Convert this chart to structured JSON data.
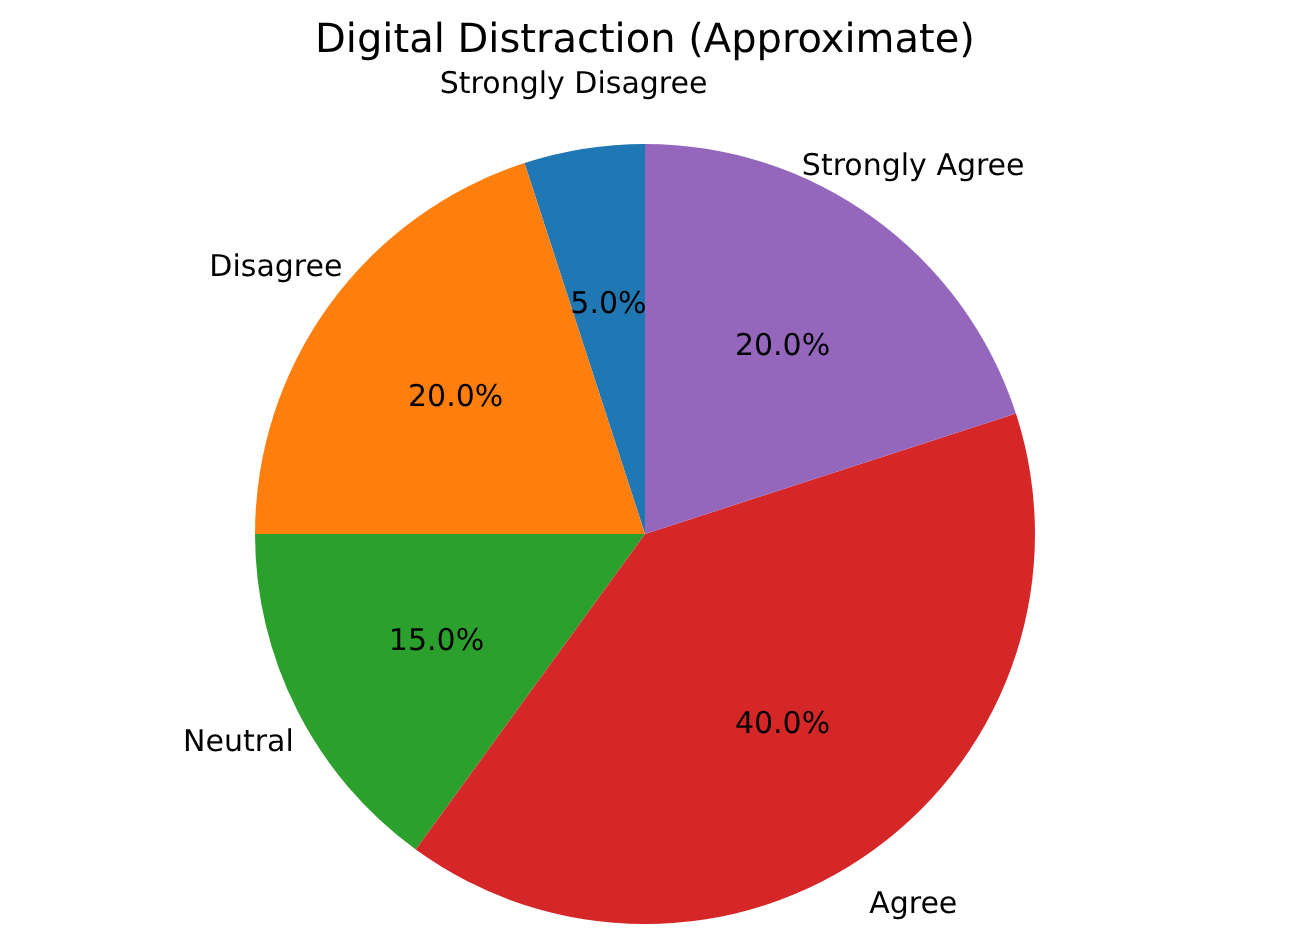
{
  "chart_data": {
    "type": "pie",
    "title": "Digital Distraction (Approximate)",
    "categories": [
      "Strongly Disagree",
      "Disagree",
      "Neutral",
      "Agree",
      "Strongly Agree"
    ],
    "values": [
      5,
      20,
      15,
      40,
      20
    ],
    "colors": [
      "#1f77b4",
      "#ff7f0e",
      "#2ca02c",
      "#d62728",
      "#9467bd"
    ],
    "value_labels": [
      "5.0%",
      "20.0%",
      "15.0%",
      "40.0%",
      "20.0%"
    ]
  }
}
